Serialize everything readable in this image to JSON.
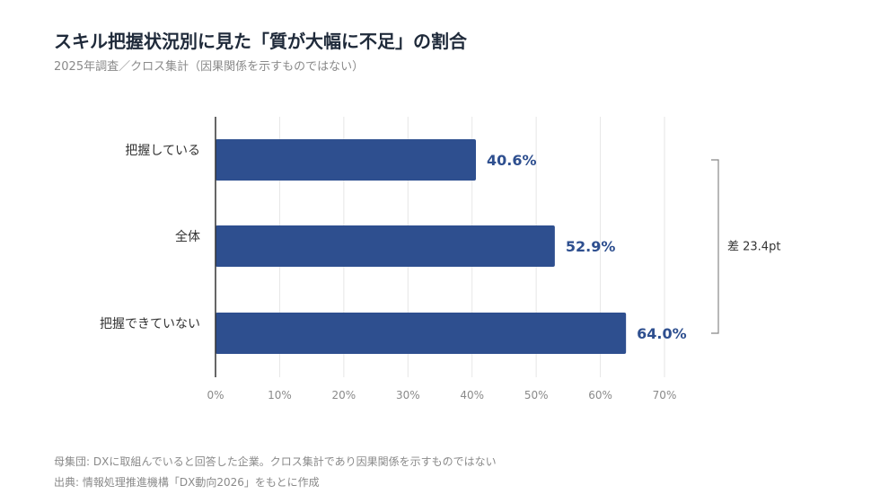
{
  "header": {
    "title": "スキル把握状況別に見た「質が大幅に不足」の割合",
    "subtitle": "2025年調査／クロス集計（因果関係を示すものではない）"
  },
  "chart_data": {
    "type": "bar",
    "orientation": "horizontal",
    "categories": [
      "把握している",
      "全体",
      "把握できていない"
    ],
    "values": [
      40.6,
      52.9,
      64.0
    ],
    "value_labels": [
      "40.6%",
      "52.9%",
      "64.0%"
    ],
    "x_ticks": [
      0,
      10,
      20,
      30,
      40,
      50,
      60,
      70
    ],
    "x_tick_labels": [
      "0%",
      "10%",
      "20%",
      "30%",
      "40%",
      "50%",
      "60%",
      "70%"
    ],
    "xlim": [
      0,
      70
    ],
    "grid": "vertical",
    "bar_color": "#2e4f8f",
    "annotation": {
      "text": "差 23.4pt",
      "from_category": "把握している",
      "to_category": "把握できていない"
    }
  },
  "footer": {
    "note": "母集団: DXに取組んでいると回答した企業。クロス集計であり因果関係を示すものではない",
    "source": "出典: 情報処理推進機構「DX動向2026」をもとに作成"
  }
}
